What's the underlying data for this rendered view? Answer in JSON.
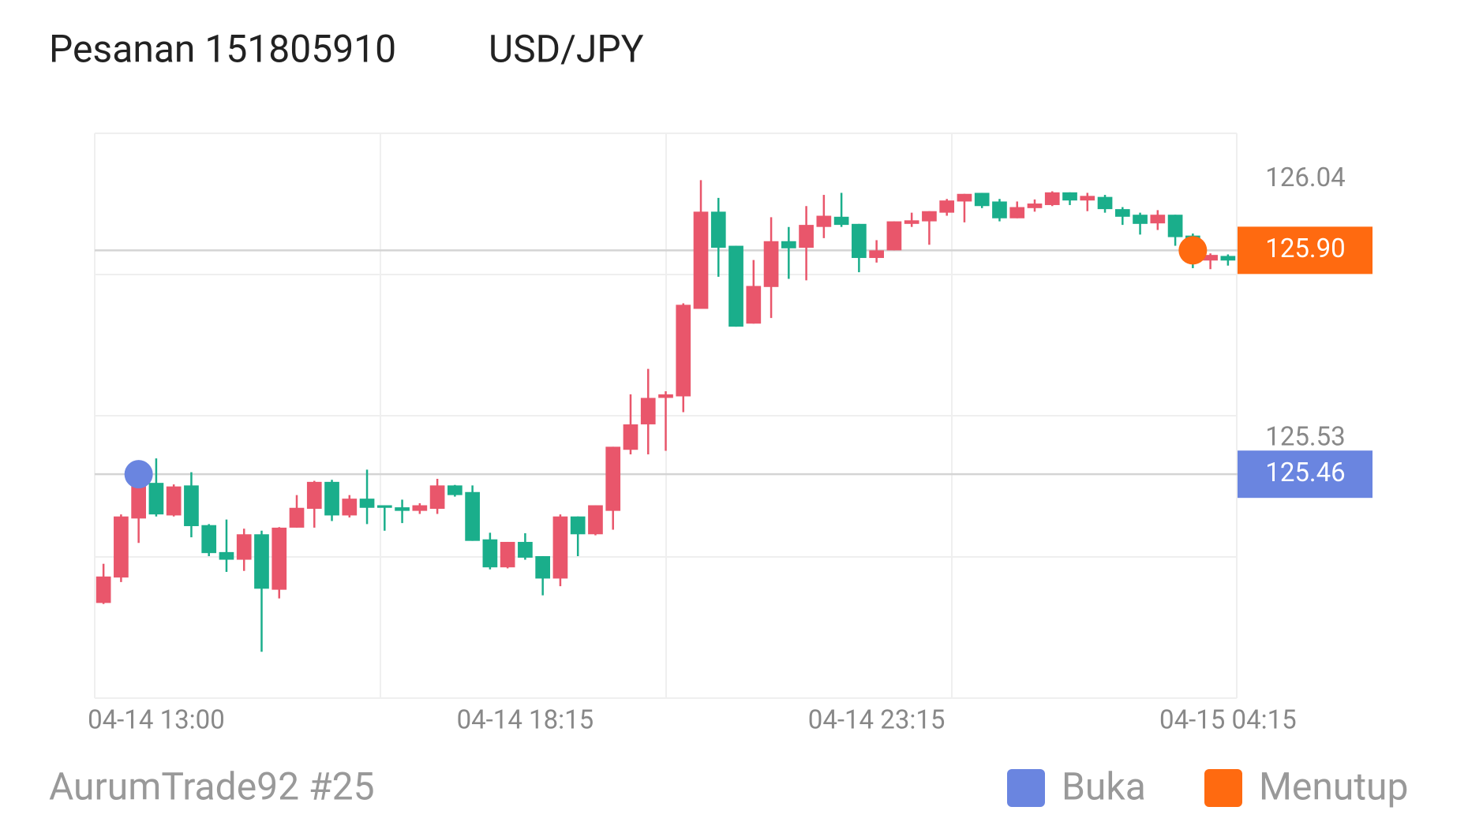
{
  "chart_data": {
    "type": "candlestick",
    "title": "Pesanan 151805910",
    "subtitle": "USD/JPY",
    "footer": "AurumTrade92 #25",
    "categories": [
      null,
      null,
      null,
      "04-14 13:00",
      null,
      null,
      null,
      null,
      null,
      null,
      null,
      null,
      null,
      null,
      null,
      null,
      null,
      null,
      null,
      null,
      null,
      null,
      null,
      null,
      "04-14 18:15",
      null,
      null,
      null,
      null,
      null,
      null,
      null,
      null,
      null,
      null,
      null,
      null,
      null,
      null,
      null,
      null,
      null,
      null,
      null,
      "04-14 23:15",
      null,
      null,
      null,
      null,
      null,
      null,
      null,
      null,
      null,
      null,
      null,
      null,
      null,
      null,
      null,
      null,
      null,
      null,
      null,
      "04-15 04:15"
    ],
    "open": [
      125.207,
      125.257,
      125.373,
      125.443,
      125.379,
      125.438,
      125.36,
      125.307,
      125.292,
      125.342,
      125.233,
      125.355,
      125.392,
      125.445,
      125.379,
      125.412,
      125.399,
      125.395,
      125.388,
      125.392,
      125.438,
      125.425,
      125.332,
      125.277,
      125.327,
      125.299,
      125.255,
      125.377,
      125.342,
      125.388,
      125.508,
      125.558,
      125.61,
      125.613,
      125.785,
      125.976,
      125.909,
      125.756,
      125.828,
      125.918,
      125.905,
      125.946,
      125.966,
      125.952,
      125.885,
      125.9,
      125.952,
      125.957,
      125.974,
      125.996,
      126.013,
      125.996,
      125.963,
      125.983,
      125.989,
      126.014,
      125.998,
      126.005,
      125.981,
      125.97,
      125.953,
      125.97,
      125.929,
      125.88,
      125.889
    ],
    "high": [
      125.284,
      125.381,
      125.484,
      125.491,
      125.44,
      125.464,
      125.362,
      125.371,
      125.353,
      125.349,
      125.356,
      125.419,
      125.447,
      125.449,
      125.419,
      125.469,
      125.399,
      125.41,
      125.403,
      125.451,
      125.439,
      125.438,
      125.345,
      125.327,
      125.344,
      125.299,
      125.381,
      125.377,
      125.399,
      125.514,
      125.617,
      125.667,
      125.623,
      125.796,
      126.038,
      126.003,
      125.909,
      125.881,
      125.965,
      125.946,
      125.987,
      126.009,
      126.013,
      125.952,
      125.92,
      125.957,
      125.974,
      125.977,
      126.001,
      126.011,
      126.013,
      126.001,
      125.996,
      126.0,
      126.016,
      126.014,
      126.013,
      126.009,
      125.985,
      125.974,
      125.979,
      125.97,
      125.933,
      125.894,
      125.892
    ],
    "low": [
      125.205,
      125.248,
      125.325,
      125.377,
      125.377,
      125.336,
      125.299,
      125.268,
      125.27,
      125.111,
      125.216,
      125.355,
      125.355,
      125.368,
      125.375,
      125.362,
      125.349,
      125.364,
      125.382,
      125.382,
      125.416,
      125.329,
      125.273,
      125.275,
      125.292,
      125.222,
      125.24,
      125.299,
      125.34,
      125.351,
      125.499,
      125.499,
      125.506,
      125.582,
      125.785,
      125.848,
      125.75,
      125.756,
      125.767,
      125.844,
      125.841,
      125.924,
      125.946,
      125.857,
      125.876,
      125.9,
      125.946,
      125.911,
      125.968,
      125.955,
      125.983,
      125.957,
      125.963,
      125.976,
      125.987,
      125.989,
      125.977,
      125.974,
      125.95,
      125.931,
      125.94,
      125.909,
      125.865,
      125.863,
      125.87
    ],
    "close": [
      125.259,
      125.377,
      125.443,
      125.381,
      125.436,
      125.358,
      125.305,
      125.292,
      125.342,
      125.235,
      125.355,
      125.394,
      125.445,
      125.379,
      125.412,
      125.394,
      125.394,
      125.388,
      125.399,
      125.438,
      125.419,
      125.329,
      125.277,
      125.327,
      125.296,
      125.255,
      125.377,
      125.342,
      125.399,
      125.514,
      125.558,
      125.61,
      125.617,
      125.793,
      125.976,
      125.905,
      125.75,
      125.83,
      125.918,
      125.904,
      125.95,
      125.968,
      125.95,
      125.885,
      125.9,
      125.957,
      125.959,
      125.977,
      125.998,
      126.011,
      125.987,
      125.963,
      125.985,
      125.992,
      126.014,
      125.998,
      126.007,
      125.981,
      125.966,
      125.952,
      125.97,
      125.926,
      125.885,
      125.891,
      125.88
    ],
    "up_color": "#e9566b",
    "down_color": "#1aae8b",
    "ylim": [
      125.02,
      126.13
    ],
    "yticks": [
      126.04,
      125.53
    ],
    "markers": [
      {
        "name": "Buka",
        "color": "#6a85e0",
        "value": 125.46,
        "value_label": "125.46",
        "index": 2
      },
      {
        "name": "Menutup",
        "color": "#ff6a10",
        "value": 125.9,
        "value_label": "125.90",
        "index": 62
      }
    ]
  }
}
